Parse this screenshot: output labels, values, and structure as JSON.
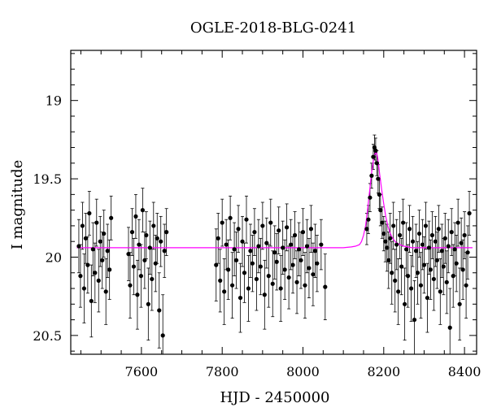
{
  "chart_data": {
    "type": "scatter",
    "title": "OGLE-2018-BLG-0241",
    "xlabel": "HJD - 2450000",
    "ylabel": "I magnitude",
    "xlim": [
      7425,
      8430
    ],
    "ylim": [
      20.62,
      18.68
    ],
    "y_inverted": true,
    "xticks": [
      7600,
      7800,
      8000,
      8200,
      8400
    ],
    "xtick_labels": [
      "7600",
      "7800",
      "8000",
      "8200",
      "8400"
    ],
    "yticks": [
      19,
      19.5,
      20,
      20.5
    ],
    "ytick_labels": [
      "19",
      "19.5",
      "20",
      "20.5"
    ],
    "grid": false,
    "series": [
      {
        "kind": "observations",
        "marker_color": "#000000",
        "error_bars": true,
        "points": [
          [
            7445,
            19.93,
            0.17
          ],
          [
            7449,
            20.12,
            0.2
          ],
          [
            7454,
            19.8,
            0.15
          ],
          [
            7458,
            20.2,
            0.22
          ],
          [
            7462,
            19.88,
            0.16
          ],
          [
            7467,
            20.05,
            0.18
          ],
          [
            7471,
            19.72,
            0.14
          ],
          [
            7476,
            20.28,
            0.23
          ],
          [
            7480,
            19.95,
            0.17
          ],
          [
            7485,
            20.1,
            0.19
          ],
          [
            7489,
            19.78,
            0.15
          ],
          [
            7494,
            20.15,
            0.2
          ],
          [
            7498,
            19.9,
            0.16
          ],
          [
            7503,
            20.02,
            0.18
          ],
          [
            7507,
            19.85,
            0.15
          ],
          [
            7512,
            20.22,
            0.21
          ],
          [
            7516,
            19.96,
            0.17
          ],
          [
            7521,
            20.08,
            0.19
          ],
          [
            7525,
            19.75,
            0.14
          ],
          [
            7568,
            19.98,
            0.17
          ],
          [
            7572,
            20.18,
            0.21
          ],
          [
            7577,
            19.84,
            0.15
          ],
          [
            7581,
            20.06,
            0.18
          ],
          [
            7586,
            19.74,
            0.14
          ],
          [
            7590,
            20.24,
            0.22
          ],
          [
            7594,
            19.92,
            0.16
          ],
          [
            7599,
            20.12,
            0.2
          ],
          [
            7603,
            19.7,
            0.14
          ],
          [
            7608,
            20.02,
            0.18
          ],
          [
            7612,
            19.86,
            0.15
          ],
          [
            7617,
            20.3,
            0.23
          ],
          [
            7621,
            19.94,
            0.17
          ],
          [
            7626,
            20.14,
            0.2
          ],
          [
            7630,
            19.8,
            0.15
          ],
          [
            7635,
            20.04,
            0.18
          ],
          [
            7639,
            19.88,
            0.16
          ],
          [
            7644,
            20.34,
            0.24
          ],
          [
            7648,
            19.9,
            0.16
          ],
          [
            7653,
            20.5,
            0.26
          ],
          [
            7657,
            19.96,
            0.17
          ],
          [
            7662,
            19.84,
            0.15
          ],
          [
            7785,
            20.05,
            0.23
          ],
          [
            7790,
            19.88,
            0.16
          ],
          [
            7795,
            20.15,
            0.2
          ],
          [
            7800,
            19.78,
            0.15
          ],
          [
            7805,
            20.22,
            0.21
          ],
          [
            7810,
            19.92,
            0.16
          ],
          [
            7815,
            20.08,
            0.19
          ],
          [
            7820,
            19.75,
            0.14
          ],
          [
            7825,
            20.18,
            0.21
          ],
          [
            7830,
            19.95,
            0.17
          ],
          [
            7835,
            20.02,
            0.18
          ],
          [
            7840,
            19.82,
            0.15
          ],
          [
            7845,
            20.26,
            0.22
          ],
          [
            7850,
            19.9,
            0.16
          ],
          [
            7855,
            20.1,
            0.19
          ],
          [
            7860,
            19.76,
            0.15
          ],
          [
            7865,
            20.2,
            0.21
          ],
          [
            7870,
            19.96,
            0.17
          ],
          [
            7875,
            20.04,
            0.18
          ],
          [
            7880,
            19.84,
            0.15
          ],
          [
            7885,
            20.14,
            0.2
          ],
          [
            7890,
            19.93,
            0.17
          ],
          [
            7895,
            20.06,
            0.18
          ],
          [
            7900,
            19.8,
            0.15
          ],
          [
            7905,
            20.24,
            0.22
          ],
          [
            7910,
            19.91,
            0.16
          ],
          [
            7915,
            20.12,
            0.2
          ],
          [
            7920,
            19.78,
            0.15
          ],
          [
            7925,
            20.17,
            0.21
          ],
          [
            7930,
            19.97,
            0.17
          ],
          [
            7935,
            20.03,
            0.18
          ],
          [
            7940,
            19.83,
            0.15
          ],
          [
            7945,
            20.2,
            0.21
          ],
          [
            7950,
            19.94,
            0.17
          ],
          [
            7955,
            20.08,
            0.19
          ],
          [
            7960,
            19.81,
            0.15
          ],
          [
            7965,
            20.13,
            0.2
          ],
          [
            7970,
            19.92,
            0.16
          ],
          [
            7975,
            20.05,
            0.18
          ],
          [
            7980,
            19.86,
            0.15
          ],
          [
            7985,
            20.16,
            0.2
          ],
          [
            7990,
            19.95,
            0.17
          ],
          [
            7995,
            20.02,
            0.18
          ],
          [
            8000,
            19.84,
            0.15
          ],
          [
            8005,
            20.18,
            0.21
          ],
          [
            8010,
            19.93,
            0.17
          ],
          [
            8015,
            20.07,
            0.19
          ],
          [
            8020,
            19.82,
            0.15
          ],
          [
            8025,
            20.11,
            0.2
          ],
          [
            8030,
            19.96,
            0.17
          ],
          [
            8035,
            20.04,
            0.18
          ],
          [
            8045,
            19.92,
            0.16
          ],
          [
            8055,
            20.19,
            0.21
          ],
          [
            8158,
            19.82,
            0.1
          ],
          [
            8162,
            19.76,
            0.09
          ],
          [
            8166,
            19.62,
            0.09
          ],
          [
            8170,
            19.48,
            0.08
          ],
          [
            8174,
            19.36,
            0.08
          ],
          [
            8177,
            19.3,
            0.08
          ],
          [
            8180,
            19.32,
            0.08
          ],
          [
            8183,
            19.4,
            0.08
          ],
          [
            8186,
            19.5,
            0.09
          ],
          [
            8189,
            19.6,
            0.09
          ],
          [
            8192,
            19.7,
            0.1
          ],
          [
            8196,
            19.78,
            0.1
          ],
          [
            8200,
            19.85,
            0.11
          ],
          [
            8204,
            19.9,
            0.13
          ],
          [
            8208,
            19.94,
            0.15
          ],
          [
            8212,
            20.02,
            0.18
          ],
          [
            8216,
            19.88,
            0.16
          ],
          [
            8220,
            20.1,
            0.2
          ],
          [
            8224,
            19.8,
            0.15
          ],
          [
            8228,
            20.15,
            0.2
          ],
          [
            8232,
            19.92,
            0.16
          ],
          [
            8236,
            20.22,
            0.21
          ],
          [
            8240,
            19.86,
            0.15
          ],
          [
            8244,
            20.06,
            0.18
          ],
          [
            8248,
            19.78,
            0.15
          ],
          [
            8252,
            20.3,
            0.23
          ],
          [
            8256,
            19.95,
            0.17
          ],
          [
            8260,
            20.12,
            0.2
          ],
          [
            8264,
            19.82,
            0.15
          ],
          [
            8268,
            20.2,
            0.21
          ],
          [
            8272,
            19.9,
            0.16
          ],
          [
            8276,
            20.4,
            0.25
          ],
          [
            8280,
            19.96,
            0.17
          ],
          [
            8284,
            20.1,
            0.2
          ],
          [
            8288,
            19.85,
            0.15
          ],
          [
            8292,
            20.18,
            0.21
          ],
          [
            8296,
            19.92,
            0.16
          ],
          [
            8300,
            20.05,
            0.18
          ],
          [
            8304,
            19.8,
            0.15
          ],
          [
            8308,
            20.26,
            0.22
          ],
          [
            8312,
            19.94,
            0.17
          ],
          [
            8316,
            20.08,
            0.19
          ],
          [
            8320,
            19.86,
            0.15
          ],
          [
            8324,
            20.14,
            0.2
          ],
          [
            8328,
            19.9,
            0.16
          ],
          [
            8332,
            20.02,
            0.18
          ],
          [
            8336,
            19.82,
            0.15
          ],
          [
            8340,
            20.22,
            0.21
          ],
          [
            8344,
            19.96,
            0.17
          ],
          [
            8348,
            20.06,
            0.18
          ],
          [
            8352,
            19.88,
            0.16
          ],
          [
            8356,
            20.16,
            0.2
          ],
          [
            8360,
            19.93,
            0.17
          ],
          [
            8364,
            20.45,
            0.25
          ],
          [
            8368,
            19.84,
            0.15
          ],
          [
            8372,
            20.12,
            0.2
          ],
          [
            8376,
            19.95,
            0.17
          ],
          [
            8380,
            20.04,
            0.18
          ],
          [
            8384,
            19.78,
            0.15
          ],
          [
            8388,
            20.3,
            0.23
          ],
          [
            8392,
            19.91,
            0.16
          ],
          [
            8396,
            20.08,
            0.19
          ],
          [
            8400,
            19.86,
            0.15
          ],
          [
            8404,
            20.18,
            0.21
          ],
          [
            8408,
            19.97,
            0.17
          ],
          [
            8412,
            19.72,
            0.14
          ]
        ]
      },
      {
        "kind": "model",
        "line_color": "#ff00ff",
        "x": [
          7440,
          7460,
          7480,
          8080,
          8100,
          8120,
          8130,
          8140,
          8145,
          8150,
          8155,
          8160,
          8165,
          8170,
          8175,
          8180,
          8183,
          8186,
          8190,
          8195,
          8200,
          8205,
          8210,
          8215,
          8220,
          8225,
          8230,
          8240,
          8250,
          8260,
          8270,
          8300,
          8420
        ],
        "y": [
          19.94,
          19.94,
          19.94,
          19.94,
          19.94,
          19.935,
          19.93,
          19.92,
          19.9,
          19.86,
          19.8,
          19.7,
          19.58,
          19.46,
          19.37,
          19.33,
          19.34,
          19.38,
          19.47,
          19.57,
          19.66,
          19.74,
          19.8,
          19.84,
          19.87,
          19.89,
          19.905,
          19.92,
          19.93,
          19.935,
          19.94,
          19.94,
          19.94
        ]
      }
    ]
  }
}
